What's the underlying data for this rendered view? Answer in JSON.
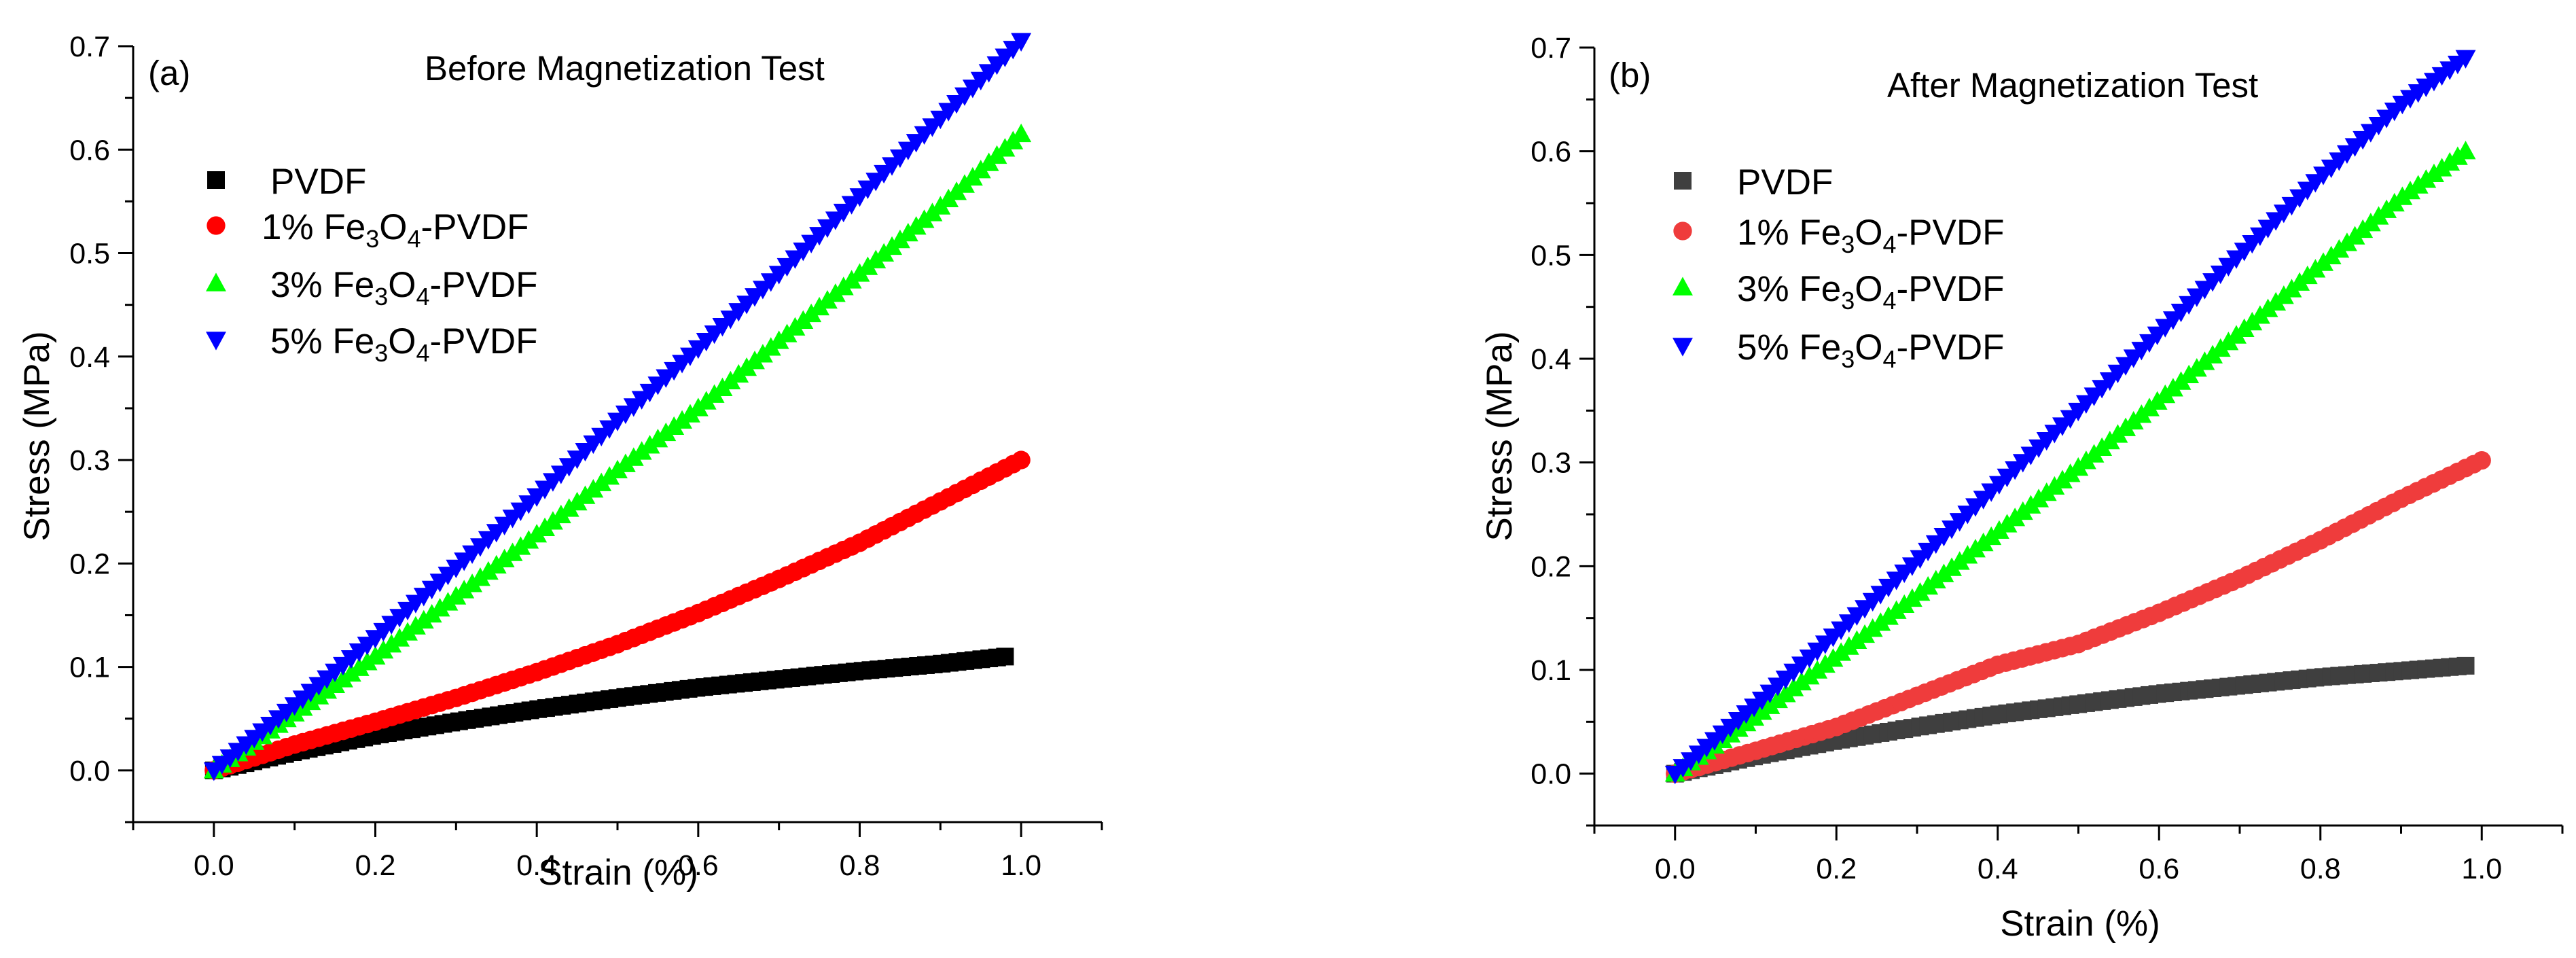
{
  "chart_data": [
    {
      "type": "scatter",
      "panel_label": "(a)",
      "title": "Before Magnetization Test",
      "xlabel": "Strain (%)",
      "ylabel": "Stress (MPa)",
      "xlim": [
        -0.1,
        1.1
      ],
      "ylim": [
        -0.05,
        0.7
      ],
      "xticks": [
        0.0,
        0.2,
        0.4,
        0.6,
        0.8,
        1.0
      ],
      "yticks": [
        0.0,
        0.1,
        0.2,
        0.3,
        0.4,
        0.5,
        0.6,
        0.7
      ],
      "xtick_labels": [
        "0.0",
        "0.2",
        "0.4",
        "0.6",
        "0.8",
        "1.0"
      ],
      "ytick_labels": [
        "0.0",
        "0.1",
        "0.2",
        "0.3",
        "0.4",
        "0.5",
        "0.6",
        "0.7"
      ],
      "grid": false,
      "legend_position": "upper-left",
      "series": [
        {
          "name": "PVDF",
          "label_parts": [
            "PVDF"
          ],
          "color": "#000000",
          "marker": "square",
          "x": [
            0.0,
            0.1,
            0.2,
            0.3,
            0.4,
            0.5,
            0.6,
            0.7,
            0.8,
            0.9,
            0.98
          ],
          "y": [
            0.0,
            0.018,
            0.034,
            0.047,
            0.059,
            0.07,
            0.08,
            0.088,
            0.096,
            0.103,
            0.11
          ]
        },
        {
          "name": "1% Fe3O4-PVDF",
          "label_parts": [
            "1% Fe",
            "3",
            "O",
            "4",
            "-PVDF"
          ],
          "color": "#ff0000",
          "marker": "circle",
          "x": [
            0.0,
            0.1,
            0.2,
            0.3,
            0.4,
            0.5,
            0.6,
            0.7,
            0.8,
            0.9,
            1.0
          ],
          "y": [
            0.0,
            0.025,
            0.047,
            0.07,
            0.095,
            0.122,
            0.152,
            0.185,
            0.22,
            0.26,
            0.3
          ]
        },
        {
          "name": "3% Fe3O4-PVDF",
          "label_parts": [
            "3% Fe",
            "3",
            "O",
            "4",
            "-PVDF"
          ],
          "color": "#00ff00",
          "marker": "triangle-up",
          "x": [
            0.0,
            0.1,
            0.2,
            0.3,
            0.4,
            0.5,
            0.6,
            0.7,
            0.8,
            0.9,
            1.0
          ],
          "y": [
            0.0,
            0.055,
            0.11,
            0.168,
            0.228,
            0.29,
            0.35,
            0.415,
            0.48,
            0.545,
            0.615
          ]
        },
        {
          "name": "5% Fe3O4-PVDF",
          "label_parts": [
            "5% Fe",
            "3",
            "O",
            "4",
            "-PVDF"
          ],
          "color": "#0000ff",
          "marker": "triangle-down",
          "x": [
            0.0,
            0.1,
            0.2,
            0.3,
            0.4,
            0.5,
            0.6,
            0.7,
            0.8,
            0.9,
            1.0
          ],
          "y": [
            0.0,
            0.063,
            0.128,
            0.196,
            0.265,
            0.338,
            0.408,
            0.48,
            0.555,
            0.63,
            0.705
          ]
        }
      ]
    },
    {
      "type": "scatter",
      "panel_label": "(b)",
      "title": "After Magnetization Test",
      "xlabel": "Strain (%)",
      "ylabel": "Stress (MPa)",
      "xlim": [
        -0.1,
        1.1
      ],
      "ylim": [
        -0.05,
        0.7
      ],
      "xticks": [
        0.0,
        0.2,
        0.4,
        0.6,
        0.8,
        1.0
      ],
      "yticks": [
        0.0,
        0.1,
        0.2,
        0.3,
        0.4,
        0.5,
        0.6,
        0.7
      ],
      "xtick_labels": [
        "0.0",
        "0.2",
        "0.4",
        "0.6",
        "0.8",
        "1.0"
      ],
      "ytick_labels": [
        "0.0",
        "0.1",
        "0.2",
        "0.3",
        "0.4",
        "0.5",
        "0.6",
        "0.7"
      ],
      "grid": false,
      "legend_position": "upper-left",
      "series": [
        {
          "name": "PVDF",
          "label_parts": [
            "PVDF"
          ],
          "color": "#3f3f3f",
          "marker": "square",
          "x": [
            0.0,
            0.1,
            0.2,
            0.3,
            0.4,
            0.5,
            0.6,
            0.7,
            0.8,
            0.9,
            0.98
          ],
          "y": [
            0.0,
            0.017,
            0.032,
            0.045,
            0.057,
            0.067,
            0.077,
            0.085,
            0.093,
            0.099,
            0.104
          ]
        },
        {
          "name": "1% Fe3O4-PVDF",
          "label_parts": [
            "1% Fe",
            "3",
            "O",
            "4",
            "-PVDF"
          ],
          "color": "#ef3c3c",
          "marker": "circle",
          "x": [
            0.0,
            0.1,
            0.2,
            0.3,
            0.4,
            0.5,
            0.6,
            0.7,
            0.8,
            0.9,
            1.0
          ],
          "y": [
            0.0,
            0.022,
            0.045,
            0.075,
            0.105,
            0.125,
            0.155,
            0.188,
            0.225,
            0.265,
            0.302
          ]
        },
        {
          "name": "3% Fe3O4-PVDF",
          "label_parts": [
            "3% Fe",
            "3",
            "O",
            "4",
            "-PVDF"
          ],
          "color": "#00ff00",
          "marker": "triangle-up",
          "x": [
            0.0,
            0.1,
            0.2,
            0.3,
            0.4,
            0.5,
            0.6,
            0.7,
            0.8,
            0.9,
            0.98
          ],
          "y": [
            0.0,
            0.055,
            0.113,
            0.172,
            0.233,
            0.295,
            0.36,
            0.425,
            0.49,
            0.555,
            0.6
          ]
        },
        {
          "name": "5% Fe3O4-PVDF",
          "label_parts": [
            "5% Fe",
            "3",
            "O",
            "4",
            "-PVDF"
          ],
          "color": "#0000ff",
          "marker": "triangle-down",
          "x": [
            0.0,
            0.1,
            0.2,
            0.3,
            0.4,
            0.5,
            0.6,
            0.7,
            0.8,
            0.9,
            0.98
          ],
          "y": [
            0.0,
            0.066,
            0.135,
            0.205,
            0.278,
            0.35,
            0.425,
            0.5,
            0.575,
            0.645,
            0.69
          ]
        }
      ]
    }
  ]
}
